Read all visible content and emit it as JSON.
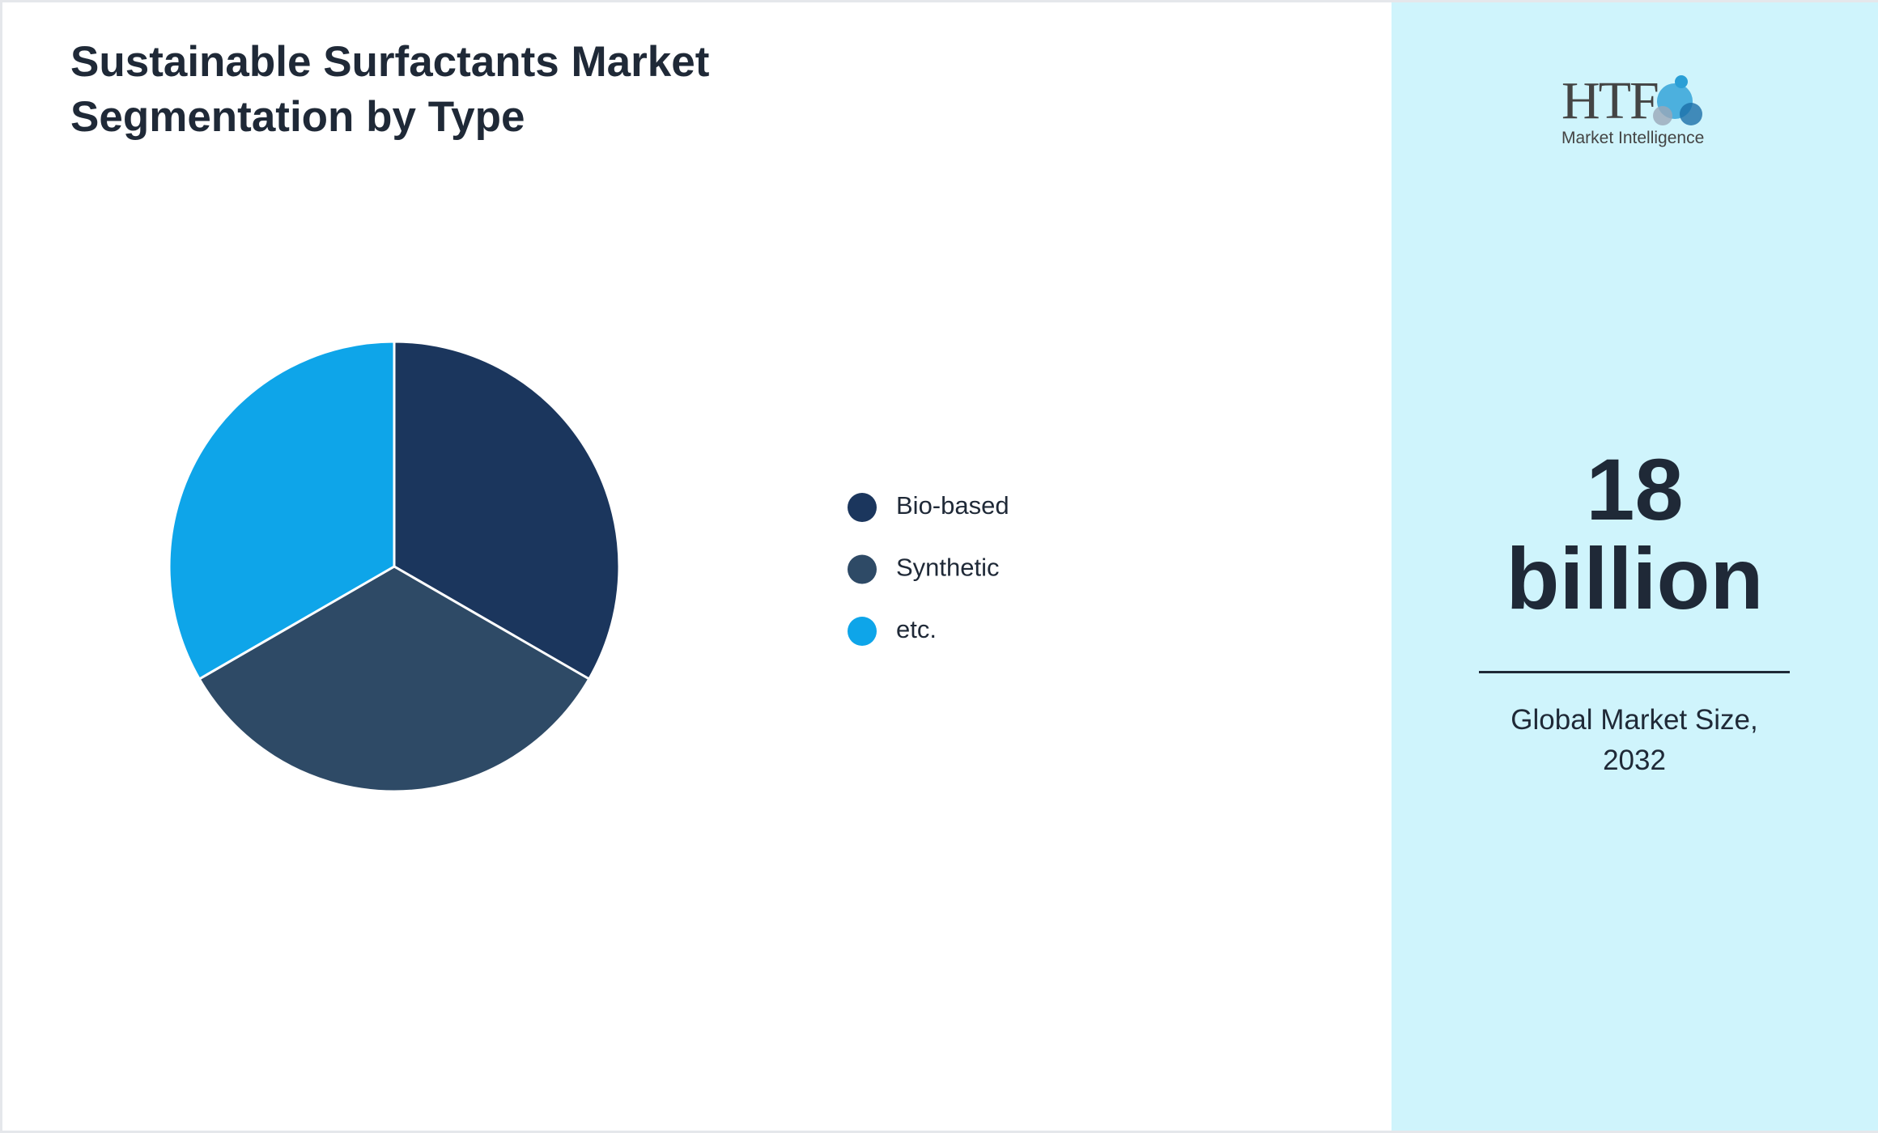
{
  "chart_data": {
    "type": "pie",
    "title": "Sustainable Surfactants Market Segmentation by Type",
    "categories": [
      "Bio-based",
      "Synthetic",
      "etc."
    ],
    "values": [
      33.3,
      33.3,
      33.3
    ],
    "colors": [
      "#1b365d",
      "#2e4a66",
      "#0ea5e9"
    ],
    "start_angle": 0,
    "direction": "clockwise"
  },
  "kpi": {
    "value": "18",
    "unit": "billion",
    "label": "Global Market Size, 2032"
  },
  "logo": {
    "name": "HTF",
    "tagline": "Market Intelligence"
  }
}
